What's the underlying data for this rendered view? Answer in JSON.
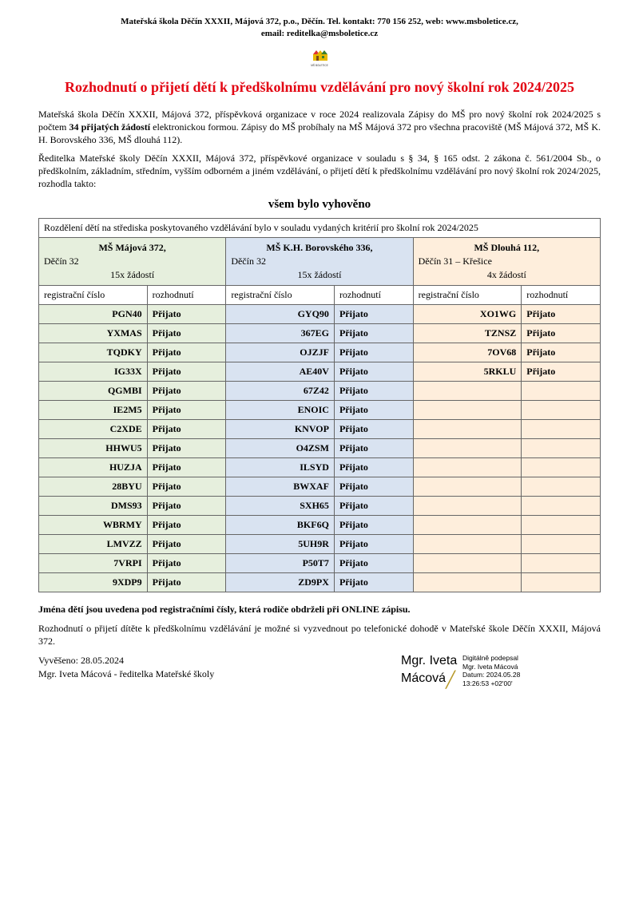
{
  "header": {
    "line1": "Mateřská škola Děčín XXXII, Májová 372, p.o., Děčín. Tel. kontakt: 770 156 252, web: www.msboletice.cz,",
    "line2": "email: reditelka@msboletice.cz"
  },
  "title": "Rozhodnutí o přijetí dětí k předškolnímu vzdělávání pro nový školní rok 2024/2025",
  "para1_pre": "Mateřská škola Děčín XXXII, Májová 372, příspěvková organizace v roce 2024 realizovala Zápisy do MŠ pro nový školní rok 2024/2025 s počtem ",
  "para1_bold": "34 přijatých žádostí",
  "para1_post": " elektronickou formou. Zápisy do MŠ probíhaly na MŠ Májová 372 pro všechna pracoviště (MŠ Májová 372, MŠ K. H. Borovského 336, MŠ dlouhá 112).",
  "para2": "Ředitelka Mateřské školy Děčín XXXII, Májová 372, příspěvkové organizace v souladu s § 34, § 165 odst. 2 zákona č. 561/2004 Sb., o předškolním, základním, středním, vyšším odborném a jiném vzdělávání, o přijetí dětí k předškolnímu vzdělávání pro nový školní rok 2024/2025, rozhodla takto:",
  "subheading": "všem bylo vyhověno",
  "table_note": "Rozdělení dětí na střediska poskytovaného vzdělávání bylo v souladu vydaných kritérií pro školní rok 2024/2025",
  "locations": [
    {
      "name": "MŠ  Májová 372,",
      "sub": "Děčín 32",
      "count": "15x žádostí",
      "bg": "bg-green"
    },
    {
      "name": "MŠ K.H. Borovského  336,",
      "sub": "Děčín 32",
      "count": "15x  žádostí",
      "bg": "bg-blue"
    },
    {
      "name": "MŠ Dlouhá 112,",
      "sub": "Děčín 31 – Křešice",
      "count": "4x žádostí",
      "bg": "bg-orange"
    }
  ],
  "col_labels": {
    "reg": "registrační číslo",
    "dec": "rozhodnutí"
  },
  "decision_word": "Přijato",
  "rows": [
    {
      "a": "PGN40",
      "b": "GYQ90",
      "c": "XO1WG"
    },
    {
      "a": "YXMAS",
      "b": "367EG",
      "c": "TZNSZ"
    },
    {
      "a": "TQDKY",
      "b": "OJZJF",
      "c": "7OV68"
    },
    {
      "a": "IG33X",
      "b": "AE40V",
      "c": "5RKLU"
    },
    {
      "a": "QGMBI",
      "b": "67Z42",
      "c": ""
    },
    {
      "a": "IE2M5",
      "b": "ENOIC",
      "c": ""
    },
    {
      "a": "C2XDE",
      "b": "KNVOP",
      "c": ""
    },
    {
      "a": "HHWU5",
      "b": "O4ZSM",
      "c": ""
    },
    {
      "a": "HUZJA",
      "b": "ILSYD",
      "c": ""
    },
    {
      "a": "28BYU",
      "b": "BWXAF",
      "c": ""
    },
    {
      "a": "DMS93",
      "b": "SXH65",
      "c": ""
    },
    {
      "a": "WBRMY",
      "b": "BKF6Q",
      "c": ""
    },
    {
      "a": "LMVZZ",
      "b": "5UH9R",
      "c": ""
    },
    {
      "a": "7VRPI",
      "b": "P50T7",
      "c": ""
    },
    {
      "a": "9XDP9",
      "b": "ZD9PX",
      "c": ""
    }
  ],
  "note_bold": "Jména dětí jsou uvedena pod registračními čísly, která rodiče obdrželi při ONLINE zápisu.",
  "para3": "Rozhodnutí o přijetí dítěte k předškolnímu vzdělávání je možné si vyzvednout po telefonické dohodě v Mateřské škole Děčín XXXII, Májová 372.",
  "posted": "Vyvěšeno: 28.05.2024",
  "signer_line": "Mgr. Iveta Mácová - ředitelka Mateřské školy",
  "digital_sig": {
    "name1": "Mgr. Iveta",
    "name2": "Mácová",
    "meta1": "Digitálně podepsal",
    "meta2": "Mgr. Iveta Mácová",
    "meta3": "Datum: 2024.05.28",
    "meta4": "13:26:53 +02'00'"
  },
  "colors": {
    "title": "#e30613",
    "bg_green": "#e6efdd",
    "bg_blue": "#d9e3f1",
    "bg_orange": "#feeedc",
    "border": "#666666"
  }
}
